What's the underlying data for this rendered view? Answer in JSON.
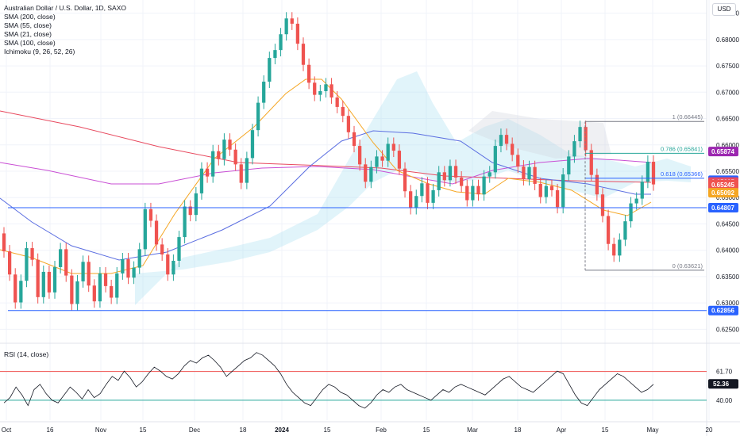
{
  "header": {
    "title": "Australian Dollar / U.S. Dollar, 1D, SAXO",
    "currency": "USD",
    "indicators": [
      "SMA (200, close)",
      "SMA (55, close)",
      "SMA (21, close)",
      "SMA (100, close)",
      "Ichimoku (9, 26, 52, 26)"
    ]
  },
  "rsi_panel": {
    "label": "RSI (14, close)",
    "levels": [
      "61.70",
      "40.00"
    ],
    "current": "52.36"
  },
  "colors": {
    "up": "#26a69a",
    "down": "#ef5350",
    "sma21": "#f5a623",
    "sma55": "#5b6ee1",
    "sma100": "#c94fd4",
    "sma200": "#e84a5f",
    "cloud": "#a9dff0",
    "grid": "#f0f3fa"
  },
  "chart_data": {
    "type": "candlestick",
    "symbol": "AUDUSD",
    "timeframe": "1D",
    "ylim": [
      0.6225,
      0.6875
    ],
    "y_ticks": [
      "0.68500",
      "0.68000",
      "0.67500",
      "0.67000",
      "0.66500",
      "0.66000",
      "0.65500",
      "0.65000",
      "0.64500",
      "0.64000",
      "0.63500",
      "0.63000",
      "0.62500"
    ],
    "x_ticks": [
      "Oct",
      "16",
      "Nov",
      "15",
      "Dec",
      "18",
      "2024",
      "15",
      "Feb",
      "15",
      "Mar",
      "18",
      "Apr",
      "15",
      "May",
      "20"
    ],
    "price_labels": [
      {
        "text": "0.65874",
        "value": 0.65874,
        "color": "#9c27b0"
      },
      {
        "text": "0.65328",
        "value": 0.65328,
        "color": "#2962ff"
      },
      {
        "text": "0.65295",
        "value": 0.65295,
        "color": "#e84a5f"
      },
      {
        "text": "0.65245",
        "value": 0.65245,
        "color": "#ef5350"
      },
      {
        "text": "0.65092",
        "value": 0.65092,
        "color": "#f5a623"
      },
      {
        "text": "0.64807",
        "value": 0.64807,
        "color": "#2962ff"
      },
      {
        "text": "0.62856",
        "value": 0.62856,
        "color": "#2962ff"
      }
    ],
    "fib_levels": [
      {
        "label": "1 (0.66445)",
        "value": 0.66445,
        "color": "#787b86"
      },
      {
        "label": "0.786 (0.65841)",
        "value": 0.65841,
        "color": "#26a69a"
      },
      {
        "label": "0.618 (0.65366)",
        "value": 0.65366,
        "color": "#2962ff"
      },
      {
        "label": "0 (0.63621)",
        "value": 0.63621,
        "color": "#787b86"
      }
    ],
    "horizontal_lines": [
      0.64807,
      0.62856
    ],
    "candles_oc": [
      [
        0.6432,
        0.6398
      ],
      [
        0.6398,
        0.6354
      ],
      [
        0.6354,
        0.6301
      ],
      [
        0.6301,
        0.6342
      ],
      [
        0.6342,
        0.6404
      ],
      [
        0.6404,
        0.6382
      ],
      [
        0.6382,
        0.6311
      ],
      [
        0.6311,
        0.6359
      ],
      [
        0.6359,
        0.632
      ],
      [
        0.632,
        0.6368
      ],
      [
        0.6368,
        0.6402
      ],
      [
        0.6402,
        0.6352
      ],
      [
        0.6352,
        0.6298
      ],
      [
        0.6298,
        0.6341
      ],
      [
        0.6341,
        0.6378
      ],
      [
        0.6378,
        0.6333
      ],
      [
        0.6333,
        0.6303
      ],
      [
        0.6303,
        0.6356
      ],
      [
        0.6356,
        0.6332
      ],
      [
        0.6332,
        0.631
      ],
      [
        0.631,
        0.6356
      ],
      [
        0.6356,
        0.6383
      ],
      [
        0.6383,
        0.6348
      ],
      [
        0.6348,
        0.6367
      ],
      [
        0.6367,
        0.6402
      ],
      [
        0.6402,
        0.6478
      ],
      [
        0.6478,
        0.6456
      ],
      [
        0.6456,
        0.6411
      ],
      [
        0.6411,
        0.6392
      ],
      [
        0.6392,
        0.6354
      ],
      [
        0.6354,
        0.638
      ],
      [
        0.638,
        0.6425
      ],
      [
        0.6425,
        0.6483
      ],
      [
        0.6483,
        0.6467
      ],
      [
        0.6467,
        0.6508
      ],
      [
        0.6508,
        0.6555
      ],
      [
        0.6555,
        0.654
      ],
      [
        0.654,
        0.6588
      ],
      [
        0.6588,
        0.6573
      ],
      [
        0.6573,
        0.661
      ],
      [
        0.661,
        0.6591
      ],
      [
        0.6591,
        0.6563
      ],
      [
        0.6563,
        0.6528
      ],
      [
        0.6528,
        0.6575
      ],
      [
        0.6575,
        0.6628
      ],
      [
        0.6628,
        0.668
      ],
      [
        0.668,
        0.672
      ],
      [
        0.672,
        0.6765
      ],
      [
        0.6765,
        0.678
      ],
      [
        0.678,
        0.681
      ],
      [
        0.681,
        0.684
      ],
      [
        0.684,
        0.683
      ],
      [
        0.683,
        0.6792
      ],
      [
        0.6792,
        0.6752
      ],
      [
        0.6752,
        0.6718
      ],
      [
        0.6718,
        0.6695
      ],
      [
        0.6695,
        0.6702
      ],
      [
        0.6702,
        0.6715
      ],
      [
        0.6715,
        0.669
      ],
      [
        0.669,
        0.6672
      ],
      [
        0.6672,
        0.6655
      ],
      [
        0.6655,
        0.6624
      ],
      [
        0.6624,
        0.6598
      ],
      [
        0.6598,
        0.6563
      ],
      [
        0.6563,
        0.653
      ],
      [
        0.653,
        0.6558
      ],
      [
        0.6558,
        0.6578
      ],
      [
        0.6578,
        0.657
      ],
      [
        0.657,
        0.6602
      ],
      [
        0.6602,
        0.6589
      ],
      [
        0.6589,
        0.6555
      ],
      [
        0.6555,
        0.6512
      ],
      [
        0.6512,
        0.648
      ],
      [
        0.648,
        0.6503
      ],
      [
        0.6503,
        0.6527
      ],
      [
        0.6527,
        0.649
      ],
      [
        0.649,
        0.6514
      ],
      [
        0.6514,
        0.6548
      ],
      [
        0.6548,
        0.6533
      ],
      [
        0.6533,
        0.656
      ],
      [
        0.656,
        0.6538
      ],
      [
        0.6538,
        0.6522
      ],
      [
        0.6522,
        0.6495
      ],
      [
        0.6495,
        0.6522
      ],
      [
        0.6522,
        0.6506
      ],
      [
        0.6506,
        0.654
      ],
      [
        0.654,
        0.6548
      ],
      [
        0.6548,
        0.6598
      ],
      [
        0.6598,
        0.6619
      ],
      [
        0.6619,
        0.6602
      ],
      [
        0.6602,
        0.6581
      ],
      [
        0.6581,
        0.6559
      ],
      [
        0.6559,
        0.6535
      ],
      [
        0.6535,
        0.6558
      ],
      [
        0.6558,
        0.6526
      ],
      [
        0.6526,
        0.6501
      ],
      [
        0.6501,
        0.6522
      ],
      [
        0.6522,
        0.6514
      ],
      [
        0.6514,
        0.6482
      ],
      [
        0.6482,
        0.6544
      ],
      [
        0.6544,
        0.6578
      ],
      [
        0.6578,
        0.6607
      ],
      [
        0.6607,
        0.6634
      ],
      [
        0.6634,
        0.659
      ],
      [
        0.659,
        0.6543
      ],
      [
        0.6543,
        0.6506
      ],
      [
        0.6506,
        0.6465
      ],
      [
        0.6465,
        0.6412
      ],
      [
        0.6412,
        0.639
      ],
      [
        0.639,
        0.642
      ],
      [
        0.642,
        0.6455
      ],
      [
        0.6455,
        0.6489
      ],
      [
        0.6489,
        0.6498
      ],
      [
        0.6498,
        0.653
      ],
      [
        0.653,
        0.6568
      ],
      [
        0.6568,
        0.6525
      ]
    ]
  }
}
